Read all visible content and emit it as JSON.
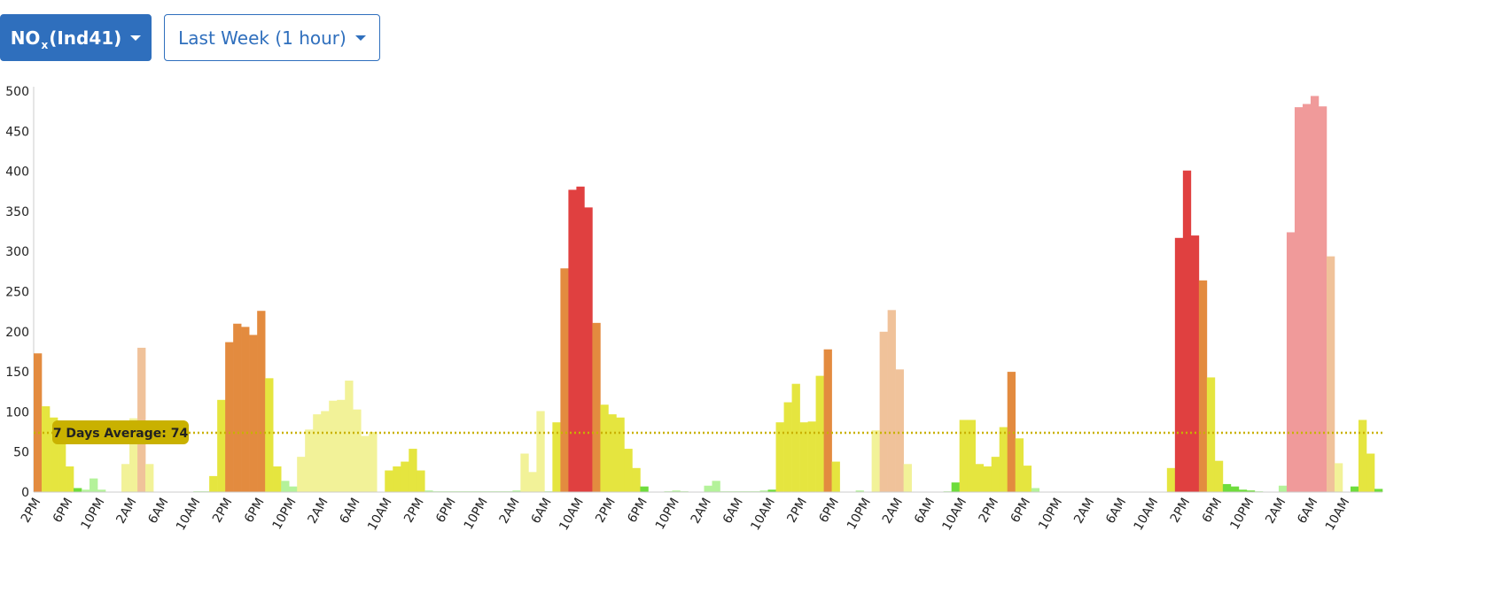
{
  "controls": {
    "pollutant": {
      "main": "NO",
      "sub": "x",
      "suffix": "(Ind41)"
    },
    "range_label": "Last Week (1 hour)"
  },
  "colors": {
    "primary": "#2f6fbd",
    "average_line": "#c9b100",
    "light_green": "#b4f29a",
    "green": "#6edc3c",
    "yellow": "#e5e53f",
    "pale_yellow": "#f2f298",
    "orange": "#e38b3f",
    "peach": "#f0c29a",
    "red": "#e04040",
    "pink": "#f09a9a"
  },
  "chart_data": {
    "type": "bar",
    "y_ticks": [
      0,
      50,
      100,
      150,
      200,
      250,
      300,
      350,
      400,
      450,
      500
    ],
    "ylim": [
      0,
      500
    ],
    "xlabel": "",
    "ylabel": "",
    "x_ticks": [
      "2PM",
      "6PM",
      "10PM",
      "2AM",
      "6AM",
      "10AM",
      "2PM",
      "6PM",
      "10PM",
      "2AM",
      "6AM",
      "10AM",
      "2PM",
      "6PM",
      "10PM",
      "2AM",
      "6AM",
      "10AM",
      "2PM",
      "6PM",
      "10PM",
      "2AM",
      "6AM",
      "10AM",
      "2PM",
      "6PM",
      "10PM",
      "2AM",
      "6AM",
      "10AM",
      "2PM",
      "6PM",
      "10PM",
      "2AM",
      "6AM",
      "10AM",
      "2PM",
      "6PM",
      "10PM",
      "2AM",
      "6AM",
      "10AM"
    ],
    "average": {
      "value": 74,
      "label": "7 Days Average: 74"
    },
    "values": [
      173,
      107,
      93,
      62,
      32,
      5,
      3,
      17,
      3,
      0,
      0,
      35,
      92,
      180,
      35,
      0,
      0,
      0,
      0,
      0,
      1,
      1,
      20,
      115,
      187,
      210,
      206,
      196,
      226,
      142,
      32,
      14,
      7,
      44,
      78,
      97,
      101,
      114,
      115,
      139,
      103,
      70,
      75,
      0,
      27,
      32,
      38,
      54,
      27,
      2,
      1,
      1,
      1,
      1,
      1,
      1,
      1,
      1,
      1,
      1,
      2,
      48,
      25,
      101,
      1,
      87,
      279,
      377,
      381,
      355,
      211,
      109,
      97,
      93,
      54,
      30,
      7,
      0,
      0,
      1,
      2,
      1,
      0,
      0,
      8,
      14,
      1,
      1,
      1,
      1,
      1,
      2,
      3,
      87,
      112,
      135,
      87,
      88,
      145,
      178,
      38,
      0,
      0,
      2,
      0,
      77,
      200,
      227,
      153,
      35,
      0,
      0,
      0,
      0,
      1,
      12,
      90,
      90,
      35,
      32,
      44,
      81,
      150,
      67,
      33,
      5,
      0,
      0,
      0,
      0,
      0,
      0,
      0,
      0,
      0,
      0,
      0,
      0,
      0,
      0,
      0,
      0,
      30,
      317,
      401,
      320,
      264,
      143,
      39,
      10,
      7,
      3,
      2,
      1,
      0,
      0,
      8,
      324,
      480,
      484,
      494,
      481,
      294,
      36,
      0,
      7,
      90,
      48,
      4
    ],
    "bar_colors": [
      "orange",
      "yellow",
      "yellow",
      "yellow",
      "yellow",
      "green",
      "light_green",
      "light_green",
      "light_green",
      "light_green",
      "pale_yellow",
      "pale_yellow",
      "pale_yellow",
      "peach",
      "pale_yellow",
      "light_green",
      "light_green",
      "light_green",
      "light_green",
      "light_green",
      "light_green",
      "light_green",
      "yellow",
      "yellow",
      "orange",
      "orange",
      "orange",
      "orange",
      "orange",
      "yellow",
      "yellow",
      "light_green",
      "light_green",
      "pale_yellow",
      "pale_yellow",
      "pale_yellow",
      "pale_yellow",
      "pale_yellow",
      "pale_yellow",
      "pale_yellow",
      "pale_yellow",
      "pale_yellow",
      "pale_yellow",
      "light_green",
      "yellow",
      "yellow",
      "yellow",
      "yellow",
      "yellow",
      "light_green",
      "light_green",
      "light_green",
      "light_green",
      "light_green",
      "light_green",
      "light_green",
      "light_green",
      "light_green",
      "light_green",
      "light_green",
      "light_green",
      "pale_yellow",
      "pale_yellow",
      "pale_yellow",
      "light_green",
      "yellow",
      "orange",
      "red",
      "red",
      "red",
      "orange",
      "yellow",
      "yellow",
      "yellow",
      "yellow",
      "yellow",
      "green",
      "light_green",
      "light_green",
      "light_green",
      "light_green",
      "light_green",
      "light_green",
      "light_green",
      "light_green",
      "light_green",
      "light_green",
      "light_green",
      "light_green",
      "light_green",
      "light_green",
      "light_green",
      "green",
      "yellow",
      "yellow",
      "yellow",
      "yellow",
      "yellow",
      "yellow",
      "orange",
      "yellow",
      "light_green",
      "light_green",
      "light_green",
      "light_green",
      "pale_yellow",
      "peach",
      "peach",
      "peach",
      "pale_yellow",
      "light_green",
      "light_green",
      "light_green",
      "light_green",
      "light_green",
      "green",
      "yellow",
      "yellow",
      "yellow",
      "yellow",
      "yellow",
      "yellow",
      "orange",
      "yellow",
      "yellow",
      "light_green",
      "light_green",
      "light_green",
      "light_green",
      "light_green",
      "light_green",
      "light_green",
      "light_green",
      "light_green",
      "light_green",
      "light_green",
      "light_green",
      "light_green",
      "light_green",
      "light_green",
      "light_green",
      "light_green",
      "yellow",
      "red",
      "red",
      "red",
      "orange",
      "yellow",
      "yellow",
      "green",
      "green",
      "green",
      "green",
      "light_green",
      "light_green",
      "light_green",
      "light_green",
      "pink",
      "pink",
      "pink",
      "pink",
      "pink",
      "peach",
      "pale_yellow",
      "light_green",
      "green",
      "yellow",
      "yellow",
      "green"
    ]
  }
}
